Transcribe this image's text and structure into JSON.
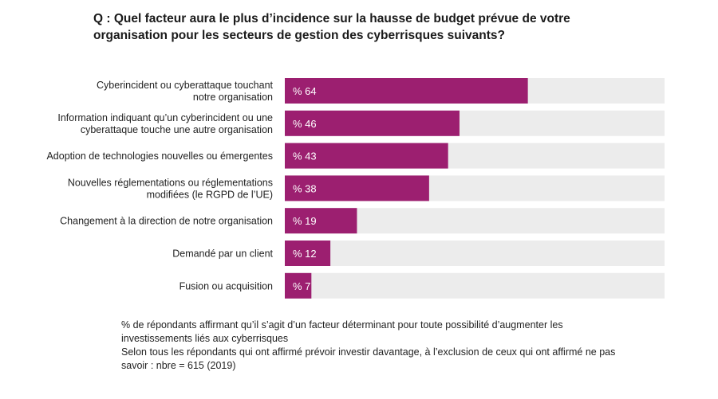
{
  "title": "Q : Quel facteur aura le plus d’incidence sur la hausse de budget prévue de votre organisation pour les secteurs de gestion des cyberrisques suivants?",
  "chart_data": {
    "type": "bar",
    "orientation": "horizontal",
    "categories": [
      [
        "Cyberincident ou cyberattaque touchant",
        "notre organisation"
      ],
      [
        "Information indiquant qu’un cyberincident ou une",
        "cyberattaque touche une autre organisation"
      ],
      [
        "Adoption de technologies nouvelles ou émergentes"
      ],
      [
        "Nouvelles réglementations ou réglementations",
        "modifiées (le RGPD de l’UE)"
      ],
      [
        "Changement à la direction de notre organisation"
      ],
      [
        "Demandé par un client"
      ],
      [
        "Fusion ou acquisition"
      ]
    ],
    "values": [
      64,
      46,
      43,
      38,
      19,
      12,
      7
    ],
    "value_labels": [
      "% 64",
      "% 46",
      "% 43",
      "% 38",
      "% 19",
      "% 12",
      "% 7"
    ],
    "xlim": [
      0,
      100
    ],
    "grid": false,
    "colors": {
      "bar": "#9c1f70",
      "track": "#ececec"
    }
  },
  "notes": [
    "% de répondants affirmant qu’il s’agit d’un facteur déterminant pour toute possibilité d’augmenter les investissements liés aux cyberrisques",
    "Selon tous les répondants qui ont affirmé prévoir investir davantage, à l’exclusion de ceux qui ont affirmé ne pas savoir : nbre = 615 (2019)"
  ]
}
